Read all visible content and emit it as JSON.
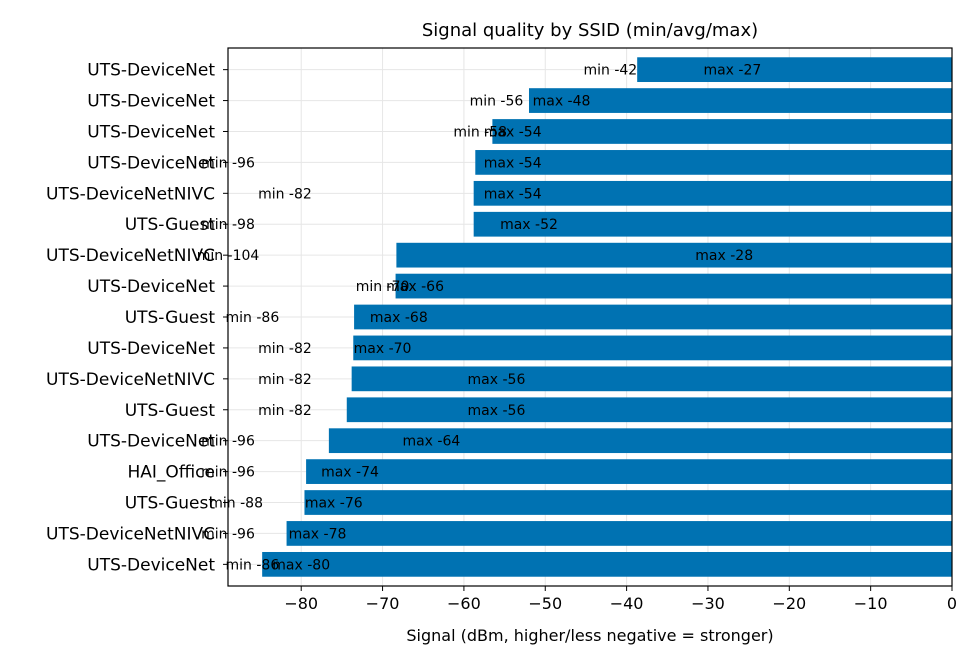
{
  "chart_data": {
    "type": "bar",
    "orientation": "horizontal",
    "title": "Signal quality by SSID (min/avg/max)",
    "xlabel": "Signal (dBm, higher/less negative = stronger)",
    "ylabel": "",
    "xlim": [
      -89,
      0
    ],
    "xticks": [
      -80,
      -70,
      -60,
      -50,
      -40,
      -30,
      -20,
      -10,
      0
    ],
    "grid": true,
    "bar_color": "#0072b2",
    "categories": [
      "UTS-DeviceNet",
      "UTS-DeviceNet",
      "UTS-DeviceNet",
      "UTS-DeviceNet",
      "UTS-DeviceNetNIVC",
      "UTS-Guest",
      "UTS-DeviceNetNIVC",
      "UTS-DeviceNet",
      "UTS-Guest",
      "UTS-DeviceNet",
      "UTS-DeviceNetNIVC",
      "UTS-Guest",
      "UTS-DeviceNet",
      "HAI_Office",
      "UTS-Guest",
      "UTS-DeviceNetNIVC",
      "UTS-DeviceNet"
    ],
    "avg": [
      -38.7,
      -52,
      -56.5,
      -58.6,
      -58.8,
      -58.8,
      -68.3,
      -68.4,
      -73.5,
      -73.6,
      -73.8,
      -74.4,
      -76.6,
      -79.4,
      -79.6,
      -81.8,
      -84.8
    ],
    "min": [
      -42,
      -56,
      -58,
      -96,
      -82,
      -98,
      -104,
      -70,
      -86,
      -82,
      -82,
      -82,
      -96,
      -96,
      -88,
      -96,
      -86
    ],
    "max": [
      -27,
      -48,
      -54,
      -54,
      -54,
      -52,
      -28,
      -66,
      -68,
      -70,
      -56,
      -56,
      -64,
      -74,
      -76,
      -78,
      -80
    ],
    "min_labels": [
      "min -42",
      "min -56",
      "min -58",
      "min -96",
      "min -82",
      "min -98",
      "min -104",
      "min -70",
      "min -86",
      "min -82",
      "min -82",
      "min -82",
      "min -96",
      "min -96",
      "min -88",
      "min -96",
      "min -86"
    ],
    "max_labels": [
      "max -27",
      "max -48",
      "max -54",
      "max -54",
      "max -54",
      "max -52",
      "max -28",
      "max -66",
      "max -68",
      "max -70",
      "max -56",
      "max -56",
      "max -64",
      "max -74",
      "max -76",
      "max -78",
      "max -80"
    ]
  }
}
